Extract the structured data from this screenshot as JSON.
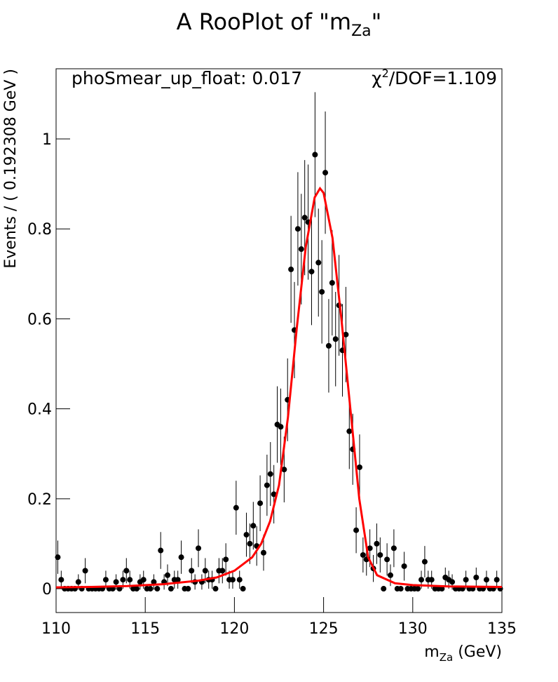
{
  "chart_data": {
    "type": "scatter",
    "title": {
      "text": "A RooPlot of \"m",
      "sub": "Za",
      "end": "\""
    },
    "x_label": {
      "text": "m",
      "sub": "Za",
      "end": " (GeV)"
    },
    "y_label": "Events / ( 0.192308 GeV )",
    "annotations": {
      "left": "phoSmear_up_float: 0.017",
      "chi": "χ",
      "sup": "2",
      "chi_rest": "/DOF=1.109"
    },
    "xlim": [
      110,
      135
    ],
    "xticks": [
      110,
      115,
      120,
      125,
      130,
      135
    ],
    "ylim": [
      -0.053,
      1.156
    ],
    "yticks": [
      0,
      0.2,
      0.4,
      0.6,
      0.8,
      1
    ],
    "bin_width": 0.192308,
    "series": [
      {
        "color": "#000000",
        "values": [
          0.07,
          0.02,
          0,
          0,
          0,
          0,
          0.015,
          0,
          0.04,
          0,
          0,
          0,
          0,
          0,
          0.02,
          0,
          0,
          0.015,
          0,
          0.02,
          0.04,
          0.02,
          0,
          0,
          0.015,
          0.02,
          0,
          0,
          0.015,
          0,
          0.085,
          0.015,
          0.03,
          0,
          0.02,
          0.02,
          0.07,
          0,
          0,
          0.04,
          0.015,
          0.09,
          0.015,
          0.04,
          0.02,
          0.02,
          0,
          0.04,
          0.04,
          0.065,
          0.02,
          0.02,
          0.18,
          0.02,
          0,
          0.12,
          0.1,
          0.14,
          0.095,
          0.19,
          0.08,
          0.23,
          0.255,
          0.21,
          0.365,
          0.36,
          0.265,
          0.42,
          0.71,
          0.575,
          0.8,
          0.755,
          0.825,
          0.815,
          0.705,
          0.965,
          0.725,
          0.66,
          0.925,
          0.54,
          0.68,
          0.555,
          0.63,
          0.53,
          0.565,
          0.35,
          0.31,
          0.13,
          0.27,
          0.075,
          0.065,
          0.09,
          0.045,
          0.1,
          0.075,
          0,
          0.065,
          0.03,
          0.09,
          0,
          0,
          0.05,
          0,
          0,
          0,
          0,
          0.02,
          0.06,
          0.02,
          0.02,
          0,
          0,
          0,
          0.025,
          0.02,
          0.015,
          0,
          0,
          0,
          0.02,
          0,
          0,
          0.025,
          0,
          0,
          0.02,
          0,
          0,
          0.02,
          0
        ],
        "errors": [
          0.037,
          0.02,
          0,
          0,
          0,
          0,
          0.017,
          0,
          0.028,
          0,
          0,
          0,
          0,
          0,
          0.02,
          0,
          0,
          0.017,
          0,
          0.02,
          0.028,
          0.02,
          0,
          0,
          0.017,
          0.02,
          0,
          0,
          0.017,
          0,
          0.041,
          0.017,
          0.024,
          0,
          0.02,
          0.02,
          0.037,
          0,
          0,
          0.028,
          0.017,
          0.042,
          0.017,
          0.028,
          0.02,
          0.02,
          0,
          0.028,
          0.028,
          0.036,
          0.02,
          0.02,
          0.06,
          0.02,
          0,
          0.049,
          0.045,
          0.053,
          0.044,
          0.062,
          0.04,
          0.068,
          0.071,
          0.065,
          0.085,
          0.085,
          0.073,
          0.092,
          0.119,
          0.107,
          0.126,
          0.123,
          0.128,
          0.128,
          0.119,
          0.139,
          0.12,
          0.115,
          0.136,
          0.104,
          0.117,
          0.105,
          0.112,
          0.103,
          0.106,
          0.084,
          0.079,
          0.051,
          0.073,
          0.039,
          0.036,
          0.042,
          0.03,
          0.045,
          0.039,
          0,
          0.036,
          0.024,
          0.042,
          0,
          0,
          0.032,
          0,
          0,
          0,
          0,
          0.02,
          0.035,
          0.02,
          0.02,
          0,
          0,
          0,
          0.022,
          0.02,
          0.017,
          0,
          0,
          0,
          0.02,
          0,
          0,
          0.022,
          0,
          0,
          0.02,
          0,
          0,
          0.02,
          0
        ]
      },
      {
        "type": "line",
        "color": "#ff0000",
        "x": [
          110,
          112,
          114,
          116,
          118,
          119,
          120,
          121,
          121.5,
          122,
          122.5,
          123,
          123.5,
          124,
          124.5,
          124.8,
          125,
          125.5,
          126,
          126.5,
          127,
          127.5,
          128,
          129,
          130,
          132,
          135
        ],
        "values": [
          0.003,
          0.004,
          0.006,
          0.01,
          0.018,
          0.025,
          0.04,
          0.07,
          0.1,
          0.15,
          0.23,
          0.38,
          0.58,
          0.76,
          0.87,
          0.89,
          0.88,
          0.78,
          0.6,
          0.4,
          0.2,
          0.07,
          0.03,
          0.012,
          0.008,
          0.005,
          0.004
        ]
      }
    ]
  }
}
